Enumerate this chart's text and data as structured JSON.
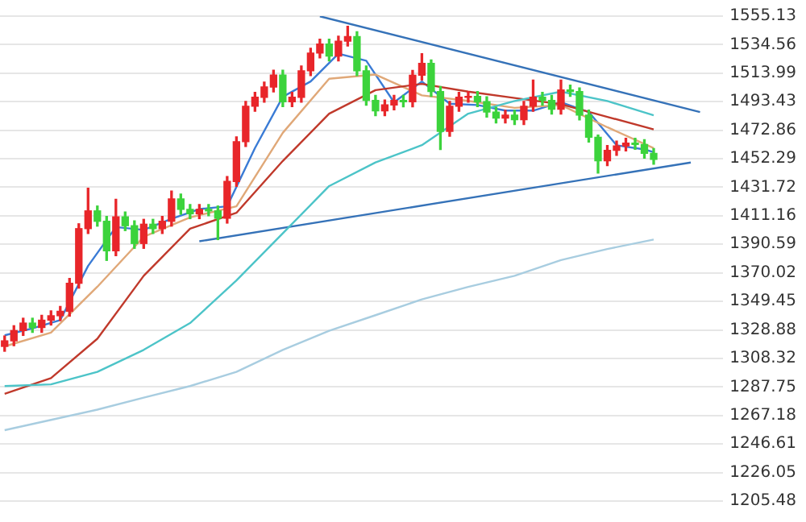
{
  "chart_data": {
    "type": "candlestick",
    "categories": [
      null,
      null,
      null,
      null,
      null,
      null,
      null,
      null,
      null,
      null,
      null,
      null,
      null,
      null,
      null,
      null,
      null,
      null,
      null,
      null,
      null,
      null,
      null,
      null,
      null,
      null,
      null,
      null,
      null,
      null,
      null,
      null,
      null,
      null,
      null,
      null,
      null,
      null,
      null,
      null,
      null,
      null,
      null,
      null,
      null,
      null,
      null,
      null,
      null,
      null,
      null,
      null,
      null,
      null,
      null,
      null,
      null,
      null,
      null,
      null,
      null,
      null,
      null,
      null,
      null,
      null,
      null,
      null,
      null,
      null,
      null,
      null,
      null,
      null,
      null,
      null,
      null,
      null
    ],
    "ohlc": [
      [
        1317,
        1324.5,
        1313.5,
        1321.0
      ],
      [
        1321.0,
        1331.9,
        1317.5,
        1328.4
      ],
      [
        1328.4,
        1337.3,
        1324.9,
        1333.8
      ],
      [
        1333.8,
        1337.3,
        1327.1,
        1330.6
      ],
      [
        1330.6,
        1339.4,
        1327.1,
        1335.9
      ],
      [
        1335.9,
        1342.6,
        1332.4,
        1339.1
      ],
      [
        1339.1,
        1345.8,
        1335.6,
        1342.3
      ],
      [
        1342.3,
        1366.0,
        1338.8,
        1362.5
      ],
      [
        1362.5,
        1405.4,
        1359.0,
        1401.9
      ],
      [
        1401.9,
        1431.0,
        1398.4,
        1414.7
      ],
      [
        1414.7,
        1418.2,
        1403.7,
        1407.2
      ],
      [
        1407.2,
        1410.7,
        1379.0,
        1385.9
      ],
      [
        1385.9,
        1423.0,
        1382.4,
        1410.4
      ],
      [
        1410.4,
        1413.9,
        1400.5,
        1404.0
      ],
      [
        1404.0,
        1407.5,
        1387.7,
        1391.2
      ],
      [
        1391.2,
        1408.6,
        1387.7,
        1405.1
      ],
      [
        1405.1,
        1408.6,
        1398.4,
        1401.9
      ],
      [
        1401.9,
        1410.7,
        1398.4,
        1407.2
      ],
      [
        1407.2,
        1429.0,
        1403.7,
        1423.3
      ],
      [
        1423.3,
        1426.8,
        1412.3,
        1415.8
      ],
      [
        1415.8,
        1419.3,
        1409.1,
        1412.6
      ],
      [
        1412.6,
        1419.3,
        1409.1,
        1415.8
      ],
      [
        1415.8,
        1419.3,
        1411.2,
        1414.7
      ],
      [
        1414.7,
        1418.2,
        1394.0,
        1409.4
      ],
      [
        1409.4,
        1439.4,
        1405.9,
        1435.9
      ],
      [
        1435.9,
        1468.1,
        1432.4,
        1464.6
      ],
      [
        1464.6,
        1493.6,
        1461.1,
        1490.1
      ],
      [
        1490.1,
        1500.1,
        1486.6,
        1496.6
      ],
      [
        1496.6,
        1507.5,
        1493.1,
        1504.0
      ],
      [
        1504.0,
        1516.1,
        1500.5,
        1512.6
      ],
      [
        1512.6,
        1516.1,
        1489.9,
        1493.4
      ],
      [
        1493.4,
        1500.1,
        1489.9,
        1496.6
      ],
      [
        1496.6,
        1519.2,
        1493.1,
        1515.7
      ],
      [
        1515.7,
        1532.0,
        1512.2,
        1528.5
      ],
      [
        1528.5,
        1538.5,
        1525.0,
        1535.0
      ],
      [
        1535.0,
        1538.5,
        1522.9,
        1526.4
      ],
      [
        1526.4,
        1540.6,
        1522.9,
        1537.1
      ],
      [
        1537.1,
        1547.8,
        1533.6,
        1540.3
      ],
      [
        1540.3,
        1543.8,
        1512.2,
        1515.7
      ],
      [
        1515.7,
        1519.2,
        1490.9,
        1494.4
      ],
      [
        1494.4,
        1497.9,
        1483.4,
        1486.9
      ],
      [
        1486.9,
        1494.6,
        1483.4,
        1491.1
      ],
      [
        1491.1,
        1497.9,
        1487.6,
        1494.4
      ],
      [
        1494.4,
        1497.9,
        1489.8,
        1493.3
      ],
      [
        1493.3,
        1516.0,
        1489.8,
        1512.5
      ],
      [
        1512.5,
        1528.0,
        1509.0,
        1521.1
      ],
      [
        1521.1,
        1523.6,
        1497.3,
        1500.8
      ],
      [
        1500.8,
        1504.3,
        1459.0,
        1472.0
      ],
      [
        1472.0,
        1493.6,
        1468.5,
        1490.1
      ],
      [
        1490.1,
        1500.1,
        1486.6,
        1496.6
      ],
      [
        1496.6,
        1500.7,
        1493.1,
        1497.2
      ],
      [
        1497.2,
        1500.7,
        1489.9,
        1493.4
      ],
      [
        1493.4,
        1496.9,
        1482.4,
        1485.9
      ],
      [
        1485.9,
        1489.4,
        1478.1,
        1481.6
      ],
      [
        1481.6,
        1487.2,
        1478.1,
        1483.7
      ],
      [
        1483.7,
        1487.2,
        1477.0,
        1480.5
      ],
      [
        1480.5,
        1493.6,
        1477.0,
        1490.1
      ],
      [
        1490.1,
        1509.0,
        1486.6,
        1496.6
      ],
      [
        1496.6,
        1500.1,
        1490.9,
        1494.4
      ],
      [
        1494.4,
        1497.9,
        1484.5,
        1488.0
      ],
      [
        1488.0,
        1509.0,
        1484.5,
        1501.9
      ],
      [
        1501.9,
        1505.4,
        1497.3,
        1500.8
      ],
      [
        1500.8,
        1503.3,
        1480.3,
        1483.8
      ],
      [
        1483.8,
        1487.3,
        1464.3,
        1467.8
      ],
      [
        1467.8,
        1469.3,
        1442.0,
        1450.8
      ],
      [
        1450.8,
        1461.8,
        1447.3,
        1458.3
      ],
      [
        1458.3,
        1465.0,
        1454.8,
        1461.5
      ],
      [
        1461.5,
        1467.1,
        1458.0,
        1463.6
      ],
      [
        1463.6,
        1467.1,
        1459.1,
        1462.6
      ],
      [
        1462.6,
        1466.1,
        1452.7,
        1456.2
      ],
      [
        1456.2,
        1459.7,
        1448.4,
        1451.9
      ],
      null,
      null,
      null,
      null,
      null,
      null,
      null
    ],
    "colors": [
      "#e8262a",
      "#e8262a",
      "#e8262a",
      "#3cd33c",
      "#e8262a",
      "#e8262a",
      "#e8262a",
      "#e8262a",
      "#e8262a",
      "#e8262a",
      "#3cd33c",
      "#3cd33c",
      "#e8262a",
      "#3cd33c",
      "#3cd33c",
      "#e8262a",
      "#3cd33c",
      "#e8262a",
      "#e8262a",
      "#3cd33c",
      "#3cd33c",
      "#e8262a",
      "#3cd33c",
      "#3cd33c",
      "#e8262a",
      "#e8262a",
      "#e8262a",
      "#e8262a",
      "#e8262a",
      "#e8262a",
      "#3cd33c",
      "#e8262a",
      "#e8262a",
      "#e8262a",
      "#e8262a",
      "#3cd33c",
      "#e8262a",
      "#e8262a",
      "#3cd33c",
      "#3cd33c",
      "#3cd33c",
      "#e8262a",
      "#e8262a",
      "#3cd33c",
      "#e8262a",
      "#e8262a",
      "#3cd33c",
      "#3cd33c",
      "#e8262a",
      "#e8262a",
      "#e8262a",
      "#3cd33c",
      "#3cd33c",
      "#3cd33c",
      "#e8262a",
      "#3cd33c",
      "#e8262a",
      "#e8262a",
      "#3cd33c",
      "#3cd33c",
      "#e8262a",
      "#3cd33c",
      "#3cd33c",
      "#3cd33c",
      "#3cd33c",
      "#e8262a",
      "#e8262a",
      "#e8262a",
      "#3cd33c",
      "#3cd33c",
      "#3cd33c",
      null,
      null,
      null,
      null,
      null,
      null,
      null
    ],
    "series": [
      {
        "type": "line",
        "color": "#a8cde0",
        "values": [
          1256.6,
          null,
          null,
          null,
          null,
          1264,
          null,
          null,
          null,
          null,
          1271.4,
          null,
          null,
          null,
          null,
          1280,
          null,
          null,
          null,
          null,
          1288.4,
          null,
          null,
          null,
          null,
          1298.6,
          null,
          null,
          null,
          null,
          1314.5,
          null,
          null,
          null,
          null,
          1328.2,
          null,
          null,
          null,
          null,
          1339.5,
          null,
          null,
          null,
          null,
          1350.9,
          null,
          null,
          null,
          null,
          1359.9,
          null,
          null,
          null,
          null,
          1367.9,
          null,
          null,
          null,
          null,
          1379.2,
          null,
          null,
          null,
          null,
          1387.2,
          null,
          null,
          null,
          null,
          1394.0,
          null,
          null,
          null,
          null,
          null,
          null,
          null
        ]
      },
      {
        "type": "line",
        "color": "#4cc4c8",
        "values": [
          1288.4,
          null,
          null,
          null,
          null,
          1289.6,
          null,
          null,
          null,
          null,
          1298.6,
          null,
          null,
          null,
          null,
          1314.5,
          null,
          null,
          null,
          null,
          1333.8,
          null,
          null,
          null,
          null,
          1364.5,
          null,
          null,
          null,
          null,
          1398.5,
          null,
          null,
          null,
          null,
          1432.6,
          null,
          null,
          null,
          null,
          1449.6,
          null,
          null,
          null,
          null,
          1462.1,
          null,
          null,
          null,
          null,
          1484.8,
          null,
          null,
          null,
          null,
          1493.9,
          null,
          null,
          null,
          null,
          1500.7,
          null,
          null,
          null,
          null,
          1493.9,
          null,
          null,
          null,
          null,
          1483.6,
          null,
          null,
          null,
          null,
          null,
          null,
          null
        ]
      },
      {
        "type": "line",
        "color": "#c0392b",
        "values": [
          1282.8,
          null,
          null,
          null,
          null,
          1294.1,
          null,
          null,
          null,
          null,
          1322.5,
          null,
          null,
          null,
          null,
          1367.9,
          null,
          null,
          null,
          null,
          1401.9,
          null,
          null,
          null,
          null,
          1413.3,
          null,
          null,
          null,
          null,
          1450.7,
          null,
          null,
          null,
          null,
          1484.8,
          null,
          null,
          null,
          null,
          1501.8,
          null,
          null,
          null,
          null,
          1506.3,
          null,
          null,
          null,
          null,
          1500.7,
          null,
          null,
          null,
          null,
          1496.1,
          null,
          null,
          null,
          null,
          1491.6,
          null,
          null,
          null,
          null,
          1482.5,
          null,
          null,
          null,
          null,
          1473.4,
          null,
          null,
          null,
          null,
          null,
          null,
          null
        ]
      },
      {
        "type": "line",
        "color": "#e0a878",
        "values": [
          1317,
          null,
          null,
          null,
          null,
          1327,
          null,
          null,
          null,
          null,
          1360,
          null,
          null,
          null,
          null,
          1396,
          null,
          null,
          null,
          null,
          1410,
          null,
          null,
          null,
          null,
          1418,
          null,
          null,
          null,
          null,
          1471,
          null,
          null,
          null,
          null,
          1510,
          null,
          null,
          null,
          null,
          1513,
          null,
          null,
          null,
          null,
          1498,
          null,
          null,
          null,
          null,
          1494,
          null,
          null,
          null,
          null,
          1489,
          null,
          null,
          null,
          null,
          1491,
          null,
          null,
          null,
          null,
          1475,
          null,
          null,
          null,
          null,
          1460,
          null,
          null,
          null,
          null,
          null,
          null,
          null
        ]
      },
      {
        "type": "line",
        "color": "#3a7bd5",
        "values": [
          1325,
          null,
          null,
          1330,
          null,
          null,
          1336,
          null,
          null,
          1375,
          null,
          null,
          1403,
          null,
          null,
          1401,
          null,
          null,
          1409,
          null,
          null,
          1416,
          null,
          null,
          1418,
          null,
          null,
          1460,
          null,
          null,
          1497,
          null,
          null,
          1508,
          null,
          null,
          1528,
          null,
          null,
          1523,
          null,
          null,
          1493,
          null,
          null,
          1508,
          null,
          null,
          1492,
          null,
          null,
          1491,
          null,
          null,
          1487,
          null,
          null,
          1487,
          null,
          null,
          1493,
          null,
          null,
          1486,
          null,
          null,
          1462,
          null,
          null,
          1459,
          1457,
          null,
          null,
          null,
          null,
          null,
          null,
          null
        ]
      },
      {
        "type": "line",
        "color": "#3572b8",
        "values": [
          null,
          null,
          null,
          null,
          null,
          null,
          null,
          null,
          null,
          null,
          null,
          null,
          null,
          null,
          null,
          null,
          null,
          null,
          null,
          null,
          null,
          null,
          null,
          null,
          null,
          null,
          null,
          null,
          null,
          null,
          null,
          null,
          null,
          null,
          1555.0,
          null,
          null,
          null,
          null,
          null,
          null,
          null,
          null,
          null,
          null,
          null,
          null,
          null,
          null,
          null,
          null,
          null,
          null,
          null,
          null,
          null,
          null,
          null,
          null,
          null,
          null,
          null,
          null,
          null,
          null,
          null,
          null,
          null,
          null,
          null,
          null,
          null,
          null,
          null,
          null,
          1485.9,
          null,
          null
        ]
      },
      {
        "type": "line",
        "color": "#3572b8",
        "values": [
          null,
          null,
          null,
          null,
          null,
          null,
          null,
          null,
          null,
          null,
          null,
          null,
          null,
          null,
          null,
          null,
          null,
          null,
          null,
          null,
          null,
          1392.8,
          null,
          null,
          null,
          null,
          null,
          null,
          null,
          null,
          null,
          null,
          null,
          null,
          null,
          null,
          null,
          null,
          null,
          null,
          null,
          null,
          null,
          null,
          null,
          null,
          null,
          null,
          null,
          null,
          null,
          null,
          null,
          null,
          null,
          null,
          null,
          null,
          null,
          null,
          null,
          null,
          null,
          null,
          null,
          null,
          null,
          null,
          null,
          null,
          null,
          null,
          null,
          null,
          1449.6,
          null,
          null,
          null
        ]
      }
    ],
    "ylim": [
      1205.48,
      1555.13
    ],
    "yticks": [
      1205.48,
      1226.05,
      1246.61,
      1267.18,
      1287.75,
      1308.32,
      1328.88,
      1349.45,
      1370.02,
      1390.59,
      1411.16,
      1431.72,
      1452.29,
      1472.86,
      1493.43,
      1513.99,
      1534.56,
      1555.13
    ],
    "grid": "y",
    "tick_labels": "y"
  }
}
